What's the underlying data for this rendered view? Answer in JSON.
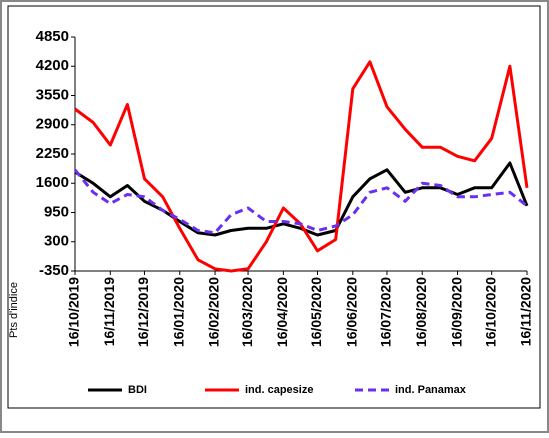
{
  "chart_data": {
    "type": "line",
    "y_label": "Pts d'indice",
    "x": [
      "16/10/2019",
      "01/11/2019",
      "16/11/2019",
      "01/12/2019",
      "16/12/2019",
      "01/01/2020",
      "16/01/2020",
      "01/02/2020",
      "16/02/2020",
      "01/03/2020",
      "16/03/2020",
      "01/04/2020",
      "16/04/2020",
      "01/05/2020",
      "16/05/2020",
      "01/06/2020",
      "16/06/2020",
      "01/07/2020",
      "16/07/2020",
      "01/08/2020",
      "16/08/2020",
      "01/09/2020",
      "16/09/2020",
      "01/10/2020",
      "16/10/2020",
      "01/11/2020",
      "16/11/2020"
    ],
    "series": [
      {
        "name": "BDI",
        "color": "#000000",
        "dash": false,
        "values": [
          1850,
          1600,
          1300,
          1550,
          1200,
          1000,
          750,
          500,
          450,
          550,
          600,
          600,
          700,
          600,
          450,
          550,
          1300,
          1700,
          1900,
          1400,
          1500,
          1500,
          1350,
          1500,
          1500,
          2050,
          1100
        ]
      },
      {
        "name": "ind. capesize",
        "color": "#ff0000",
        "dash": false,
        "values": [
          3250,
          2950,
          2450,
          3350,
          1700,
          1300,
          600,
          -100,
          -300,
          -350,
          -300,
          300,
          1050,
          700,
          100,
          350,
          3700,
          4300,
          3300,
          2800,
          2400,
          2400,
          2200,
          2100,
          2600,
          4200,
          1500
        ]
      },
      {
        "name": "ind. Panamax",
        "color": "#6a2ff0",
        "dash": true,
        "values": [
          1900,
          1400,
          1150,
          1350,
          1300,
          1000,
          800,
          550,
          500,
          900,
          1050,
          750,
          750,
          700,
          550,
          650,
          900,
          1400,
          1500,
          1200,
          1600,
          1550,
          1300,
          1300,
          1350,
          1400,
          1100
        ]
      }
    ],
    "xticks": [
      "16/10/2019",
      "16/11/2019",
      "16/12/2019",
      "16/01/2020",
      "16/02/2020",
      "16/03/2020",
      "16/04/2020",
      "16/05/2020",
      "16/06/2020",
      "16/07/2020",
      "16/08/2020",
      "16/09/2020",
      "16/10/2020",
      "16/11/2020"
    ],
    "ylim": [
      -350,
      4850
    ],
    "yticks": [
      -350,
      300,
      950,
      1600,
      2250,
      2900,
      3550,
      4200,
      4850
    ]
  }
}
